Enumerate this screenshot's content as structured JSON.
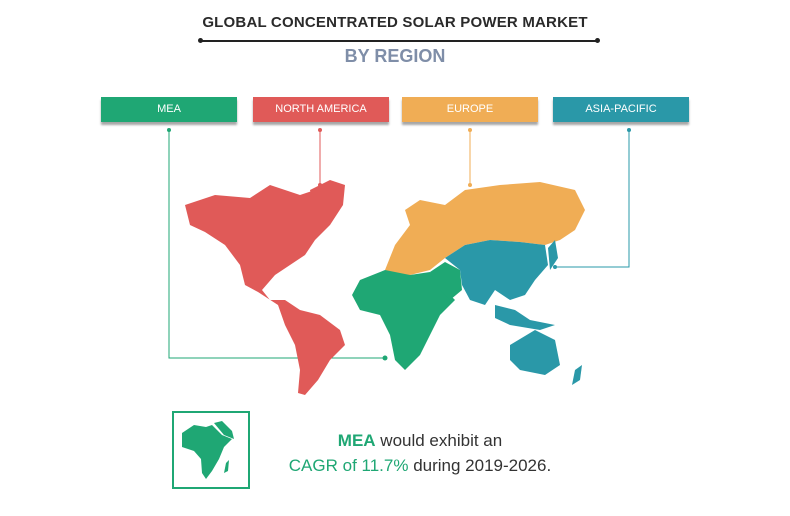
{
  "header": {
    "title": "GLOBAL CONCENTRATED SOLAR POWER MARKET",
    "subtitle": "BY REGION"
  },
  "regions": [
    {
      "label": "MEA",
      "color": "#1fa774"
    },
    {
      "label": "NORTH AMERICA",
      "color": "#e05a58"
    },
    {
      "label": "EUROPE",
      "color": "#f0ad55"
    },
    {
      "label": "ASIA-PACIFIC",
      "color": "#2a98a8"
    }
  ],
  "callout": {
    "region": "MEA",
    "text1": " would exhibit an",
    "highlight": "CAGR of 11.7%",
    "text2": " during 2019-2026."
  }
}
